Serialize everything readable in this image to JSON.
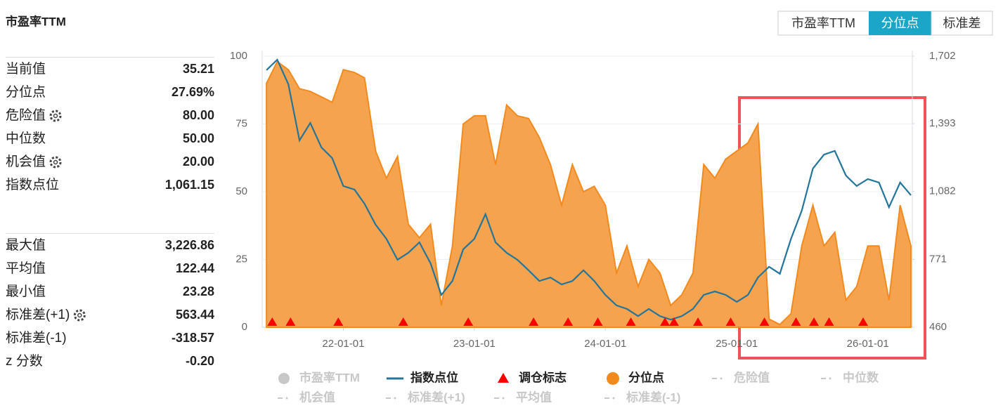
{
  "stats": {
    "title": "市盈率TTM",
    "groups": [
      [
        {
          "label": "当前值",
          "value": "35.21"
        },
        {
          "label": "分位点",
          "value": "27.69%"
        },
        {
          "label": "危险值",
          "value": "80.00",
          "gear": true
        },
        {
          "label": "中位数",
          "value": "50.00"
        },
        {
          "label": "机会值",
          "value": "20.00",
          "gear": true
        },
        {
          "label": "指数点位",
          "value": "1,061.15"
        }
      ],
      [
        {
          "label": "最大值",
          "value": "3,226.86"
        },
        {
          "label": "平均值",
          "value": "122.44"
        },
        {
          "label": "最小值",
          "value": "23.28"
        },
        {
          "label": "标准差(+1)",
          "value": "563.44",
          "gear": true
        },
        {
          "label": "标准差(-1)",
          "value": "-318.57"
        },
        {
          "label": "z 分数",
          "value": "-0.20"
        }
      ]
    ]
  },
  "tabs": {
    "items": [
      "市盈率TTM",
      "分位点",
      "标准差"
    ],
    "active": 1
  },
  "chart_data": {
    "type": "area-line",
    "x": [
      "21-06-01",
      "21-07-01",
      "21-08-01",
      "21-09-01",
      "21-10-01",
      "21-11-01",
      "21-12-01",
      "22-01-01",
      "22-02-01",
      "22-03-01",
      "22-04-01",
      "22-05-01",
      "22-06-01",
      "22-07-01",
      "22-08-01",
      "22-09-01",
      "22-10-01",
      "22-11-01",
      "22-12-01",
      "23-01-01",
      "23-02-01",
      "23-03-01",
      "23-04-01",
      "23-05-01",
      "23-06-01",
      "23-07-01",
      "23-08-01",
      "23-09-01",
      "23-10-01",
      "23-11-01",
      "23-12-01",
      "24-01-01",
      "24-02-01",
      "24-03-01",
      "24-04-01",
      "24-05-01",
      "24-06-01",
      "24-07-01",
      "24-08-01",
      "24-09-01",
      "24-10-01",
      "24-11-01",
      "24-12-01",
      "25-01-01",
      "25-02-01",
      "25-03-01",
      "25-04-01",
      "25-05-01",
      "25-06-01",
      "25-07-01",
      "25-08-01",
      "25-09-01",
      "25-10-01",
      "25-11-01",
      "25-12-01",
      "26-01-01",
      "26-02-01",
      "26-03-01",
      "26-04-01",
      "26-05-01"
    ],
    "series": [
      {
        "name": "分位点",
        "kind": "area",
        "color": "#f28a1e",
        "values": [
          90,
          98,
          95,
          88,
          87,
          85,
          83,
          95,
          94,
          92,
          65,
          55,
          63,
          38,
          33,
          38,
          8,
          30,
          75,
          78,
          78,
          60,
          82,
          78,
          77,
          70,
          60,
          45,
          60,
          50,
          52,
          45,
          20,
          30,
          15,
          25,
          20,
          8,
          12,
          20,
          60,
          55,
          62,
          65,
          68,
          75,
          3,
          1,
          5,
          30,
          45,
          30,
          35,
          10,
          15,
          30,
          30,
          10,
          45,
          30
        ]
      },
      {
        "name": "指数点位",
        "kind": "line",
        "axis": "y2",
        "color": "#23759b",
        "values": [
          1638,
          1686,
          1573,
          1316,
          1396,
          1284,
          1235,
          1107,
          1091,
          1026,
          930,
          865,
          769,
          801,
          849,
          753,
          608,
          672,
          817,
          865,
          978,
          849,
          801,
          769,
          721,
          672,
          688,
          656,
          672,
          721,
          672,
          608,
          560,
          544,
          511,
          544,
          511,
          495,
          511,
          544,
          608,
          624,
          608,
          576,
          608,
          688,
          737,
          705,
          865,
          994,
          1187,
          1251,
          1268,
          1155,
          1107,
          1139,
          1123,
          1010,
          1123,
          1065
        ]
      }
    ],
    "markers": {
      "name": "调仓标志",
      "color": "#ff0000",
      "x": [
        "21-06-17",
        "21-08-07",
        "21-12-18",
        "22-06-17",
        "22-12-15",
        "23-06-15",
        "23-09-19",
        "23-12-11",
        "24-03-12",
        "24-06-15",
        "24-07-10",
        "24-09-15",
        "24-12-15",
        "25-03-19",
        "25-06-15",
        "25-08-04",
        "25-09-15",
        "25-12-19"
      ]
    },
    "hidden_series": [
      {
        "name": "市盈率TTM",
        "symbol": "circle"
      },
      {
        "name": "危险值",
        "symbol": "dash"
      },
      {
        "name": "中位数",
        "symbol": "dash"
      },
      {
        "name": "机会值",
        "symbol": "dash"
      },
      {
        "name": "标准差(+1)",
        "symbol": "dash"
      },
      {
        "name": "平均值",
        "symbol": "dash"
      },
      {
        "name": "标准差(-1)",
        "symbol": "dash"
      }
    ],
    "xlim": [
      "21-05-20",
      "26-05-05"
    ],
    "xticks": [
      "22-01-01",
      "23-01-01",
      "24-01-01",
      "25-01-01",
      "26-01-01"
    ],
    "ylim": [
      0,
      100
    ],
    "yticks": [
      0,
      25,
      50,
      75,
      100
    ],
    "y2lim": [
      460,
      1702
    ],
    "y2ticks": [
      460,
      771,
      {
        "value": 1082,
        "label": "1,082"
      },
      {
        "value": 1393,
        "label": "1,393"
      },
      {
        "value": 1702,
        "label": "1,702"
      }
    ],
    "grid": true
  }
}
